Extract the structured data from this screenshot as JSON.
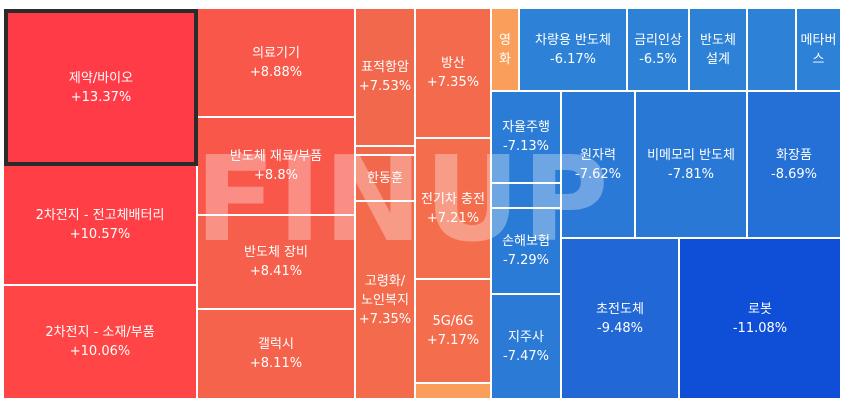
{
  "watermark": "FINUP",
  "tiles": [
    {
      "id": "tile-pharma-bio",
      "name": "제약/바이오",
      "change": "+13.37%",
      "color": "#ff3b47",
      "selected": true
    },
    {
      "id": "tile-2nd-battery-solid",
      "name": "2차전지 - 전고체배터리",
      "change": "+10.57%",
      "color": "#ff3f45"
    },
    {
      "id": "tile-2nd-battery-material",
      "name": "2차전지 - 소재/부품",
      "change": "+10.06%",
      "color": "#ff4545"
    },
    {
      "id": "tile-medical-devices",
      "name": "의료기기",
      "change": "+8.88%",
      "color": "#f8574a"
    },
    {
      "id": "tile-semi-materials",
      "name": "반도체 재료/부품",
      "change": "+8.8%",
      "color": "#f8574a"
    },
    {
      "id": "tile-semi-equipment",
      "name": "반도체 장비",
      "change": "+8.41%",
      "color": "#f65f4b"
    },
    {
      "id": "tile-galaxy",
      "name": "갤럭시",
      "change": "+8.11%",
      "color": "#f5634c"
    },
    {
      "id": "tile-targeted-cancer",
      "name": "표적항암",
      "change": "+7.53%",
      "color": "#f2684c"
    },
    {
      "id": "tile-small-blank-1",
      "name": "",
      "change": "",
      "color": "#f2684c"
    },
    {
      "id": "tile-hanhoon",
      "name": "한동훈",
      "change": "",
      "color": "#f2684c"
    },
    {
      "id": "tile-aging-welfare",
      "name": "고령화/노인복지",
      "change": "+7.35%",
      "color": "#f36a4d"
    },
    {
      "id": "tile-defense",
      "name": "방산",
      "change": "+7.35%",
      "color": "#f36a4d"
    },
    {
      "id": "tile-ev-charging",
      "name": "전기차 충전",
      "change": "+7.21%",
      "color": "#f46d4d"
    },
    {
      "id": "tile-5g-6g",
      "name": "5G/6G",
      "change": "+7.17%",
      "color": "#f46d4d"
    },
    {
      "id": "tile-small-blank-2",
      "name": "",
      "change": "",
      "color": "#f99f5b"
    },
    {
      "id": "tile-movie",
      "name": "영화",
      "change": "",
      "color": "#f99f5b"
    },
    {
      "id": "tile-auto-semi",
      "name": "차량용 반도체",
      "change": "-6.17%",
      "color": "#2d82d7"
    },
    {
      "id": "tile-gold-silver",
      "name": "금리인상",
      "change": "-6.5%",
      "color": "#2d82d7"
    },
    {
      "id": "tile-semi-design",
      "name": "반도체 설계",
      "change": "",
      "color": "#2d82d7"
    },
    {
      "id": "tile-unlabeled",
      "name": "",
      "change": "",
      "color": "#2d82d7"
    },
    {
      "id": "tile-metaverse",
      "name": "메타버스",
      "change": "",
      "color": "#2d82d7"
    },
    {
      "id": "tile-autonomous",
      "name": "자율주행",
      "change": "-7.13%",
      "color": "#2a7cd6"
    },
    {
      "id": "tile-small-blue-1",
      "name": "",
      "change": "",
      "color": "#2a7cd6"
    },
    {
      "id": "tile-nuclear",
      "name": "원자력",
      "change": "-7.62%",
      "color": "#2a79d6"
    },
    {
      "id": "tile-non-memory",
      "name": "비메모리 반도체",
      "change": "-7.81%",
      "color": "#2978d6"
    },
    {
      "id": "tile-cosmetics",
      "name": "화장품",
      "change": "-8.69%",
      "color": "#2570d6"
    },
    {
      "id": "tile-insurance",
      "name": "손해보험",
      "change": "-7.29%",
      "color": "#2a7bd6"
    },
    {
      "id": "tile-holding",
      "name": "지주사",
      "change": "-7.47%",
      "color": "#2a7ad6"
    },
    {
      "id": "tile-superconductor",
      "name": "초전도체",
      "change": "-9.48%",
      "color": "#2168d6"
    },
    {
      "id": "tile-robot",
      "name": "로봇",
      "change": "-11.08%",
      "color": "#0f4fd8"
    }
  ]
}
